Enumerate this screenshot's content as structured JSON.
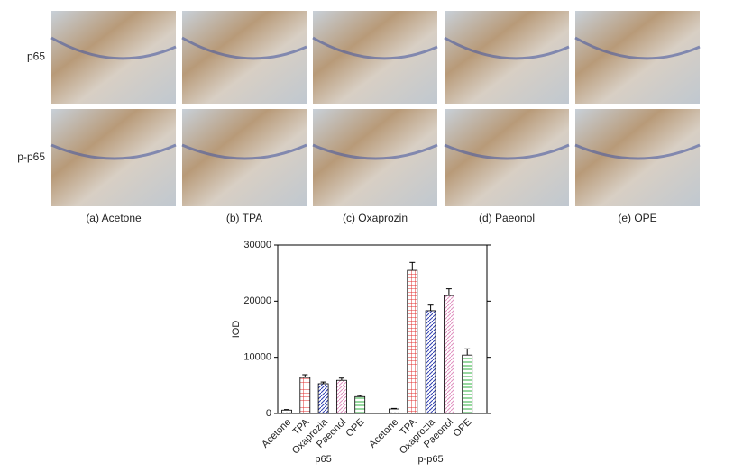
{
  "figure": {
    "row_labels": [
      "p65",
      "p-p65"
    ],
    "column_labels": [
      "(a) Acetone",
      "(b) TPA",
      "(c) Oxaprozin",
      "(d) Paeonol",
      "(e) OPE"
    ]
  },
  "chart_data": {
    "type": "bar",
    "ylabel": "IOD",
    "ylim": [
      0,
      30000
    ],
    "yticks": [
      0,
      10000,
      20000,
      30000
    ],
    "colors": [
      "#888888",
      "#e03030",
      "#3040b0",
      "#e090c0",
      "#30b040"
    ],
    "groups": [
      {
        "name": "p65",
        "categories": [
          "Acetone",
          "TPA",
          "Oxaprozia",
          "Paeonol",
          "OPE"
        ],
        "values": [
          600,
          6400,
          5300,
          5900,
          3000
        ],
        "errors": [
          100,
          500,
          300,
          400,
          200
        ]
      },
      {
        "name": "p-p65",
        "categories": [
          "Acetone",
          "TPA",
          "Oxaprozia",
          "Paeonol",
          "OPE"
        ],
        "values": [
          800,
          25500,
          18300,
          21000,
          10400
        ],
        "errors": [
          100,
          1400,
          1000,
          1200,
          1100
        ]
      }
    ]
  }
}
